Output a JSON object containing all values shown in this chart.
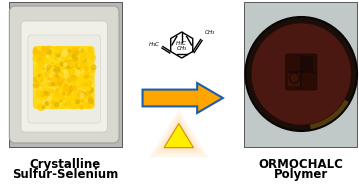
{
  "background_color": "#ffffff",
  "left_label_line1": "Crystalline",
  "left_label_line2": "Sulfur-Selenium",
  "right_label_line1": "ORMOCHALC",
  "right_label_line2": "Polymer",
  "arrow_fill": "#FFA500",
  "arrow_edge": "#1B5EAB",
  "triangle_fill": "#FFEE00",
  "triangle_glow": "#FFB040",
  "label_fontsize": 8.5,
  "label_fontweight": "bold",
  "photo_frame_color": "#c8c8c8",
  "photo_bg_left": "#b8b8b8",
  "dish_outer": "#d8d8d0",
  "dish_inner": "#e8e8e2",
  "dish_shadow": "#a0a098",
  "crystal_colors": [
    "#FFD700",
    "#FFC200",
    "#FFE040",
    "#E8B800",
    "#FFCC00",
    "#FFD000"
  ],
  "petri_outer_ring": "#1a0e08",
  "petri_inner": "#3c1208",
  "petri_dark_quad": "#220a04",
  "petri_mid_quad": "#4a1a0a",
  "photo_frame_right": "#c0c8c8"
}
